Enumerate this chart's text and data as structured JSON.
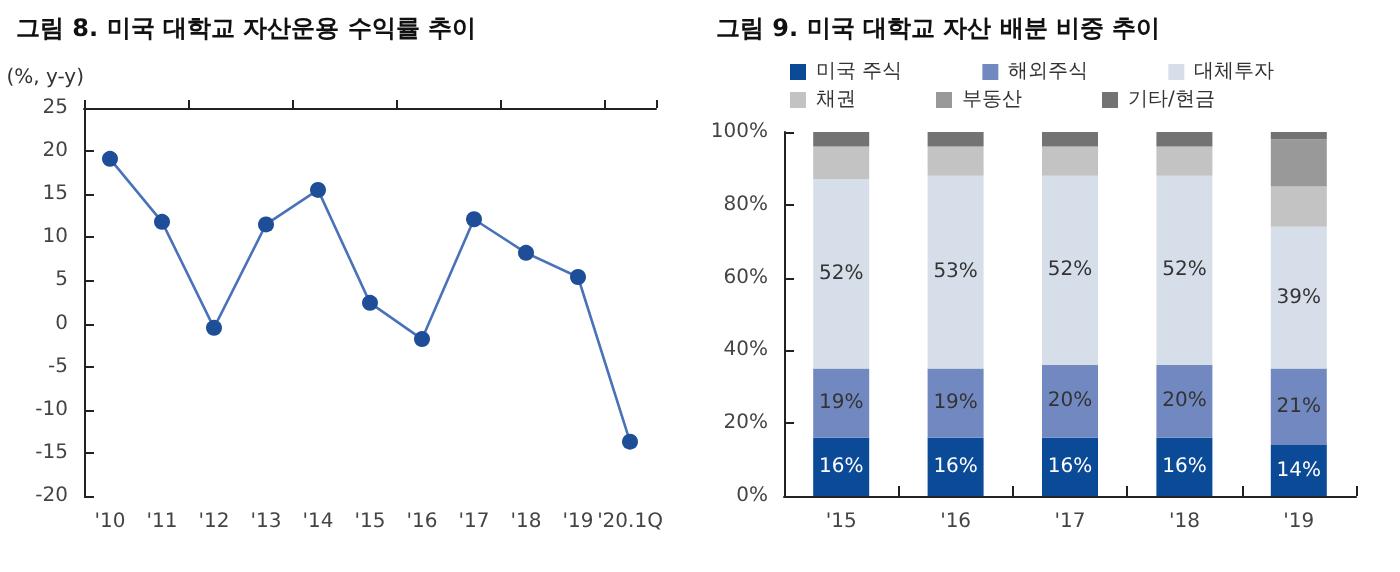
{
  "chart_data": [
    {
      "type": "line",
      "title": "그림 8. 미국 대학교 자산운용 수익률 추이",
      "ylabel": "(%, y-y)",
      "categories": [
        "'10",
        "'11",
        "'12",
        "'13",
        "'14",
        "'15",
        "'16",
        "'17",
        "'18",
        "'19",
        "'20.1Q"
      ],
      "series": [
        {
          "color": "#1f4e99",
          "values": [
            19.1,
            11.8,
            -0.5,
            11.5,
            15.5,
            2.4,
            -1.8,
            12.1,
            8.2,
            5.4,
            -13.7
          ]
        }
      ],
      "ylim": [
        -20,
        25
      ],
      "yticks": [
        -20,
        -15,
        -10,
        -5,
        0,
        5,
        10,
        15,
        20,
        25
      ],
      "grid": false,
      "legend": false,
      "marker": "circle",
      "line_style": "solid"
    },
    {
      "type": "bar",
      "stacked": true,
      "title": "그림 9. 미국 대학교 자산 배분 비중 추이",
      "categories": [
        "'15",
        "'16",
        "'17",
        "'18",
        "'19"
      ],
      "series": [
        {
          "name": "미국 주식",
          "color": "#0b4a96",
          "values": [
            16,
            16,
            16,
            16,
            14
          ],
          "value_labels": [
            "16%",
            "16%",
            "16%",
            "16%",
            "14%"
          ]
        },
        {
          "name": "해외주식",
          "color": "#7189c0",
          "values": [
            19,
            19,
            20,
            20,
            21
          ],
          "value_labels": [
            "19%",
            "19%",
            "20%",
            "20%",
            "21%"
          ]
        },
        {
          "name": "대체투자",
          "color": "#d6dfe9",
          "values": [
            52,
            53,
            52,
            52,
            39
          ],
          "value_labels": [
            "52%",
            "53%",
            "52%",
            "52%",
            "39%"
          ]
        },
        {
          "name": "채권",
          "color": "#c3c3c3",
          "values": [
            9,
            8,
            8,
            8,
            11
          ]
        },
        {
          "name": "부동산",
          "color": "#999999",
          "values": [
            0,
            0,
            0,
            0,
            13
          ]
        },
        {
          "name": "기타/현금",
          "color": "#737373",
          "values": [
            4,
            4,
            4,
            4,
            2
          ]
        }
      ],
      "ylim": [
        0,
        100
      ],
      "yticks": [
        {
          "value": 0,
          "label": "0%"
        },
        {
          "value": 20,
          "label": "20%"
        },
        {
          "value": 40,
          "label": "40%"
        },
        {
          "value": 60,
          "label": "60%"
        },
        {
          "value": 80,
          "label": "80%"
        },
        {
          "value": 100,
          "label": "100%"
        }
      ],
      "grid": false,
      "legend": "top"
    }
  ]
}
